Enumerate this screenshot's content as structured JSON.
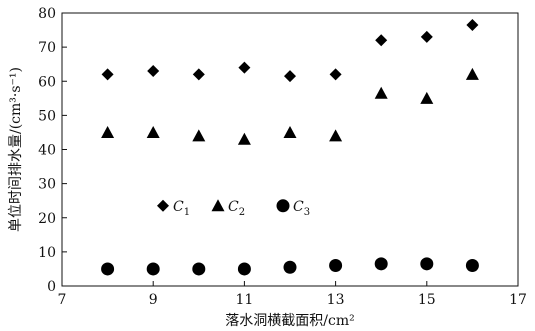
{
  "chart_data": {
    "type": "scatter",
    "xlabel": "落水洞横截面积/cm²",
    "ylabel": "单位时间排水量/(cm³·s⁻¹)",
    "xlim": [
      7,
      17
    ],
    "ylim": [
      0,
      80
    ],
    "xticks": [
      7,
      9,
      11,
      13,
      15,
      17
    ],
    "yticks": [
      0,
      10,
      20,
      30,
      40,
      50,
      60,
      70,
      80
    ],
    "grid": false,
    "legend_position": "middle-left",
    "series": [
      {
        "name": "C",
        "subscript": "1",
        "marker": "diamond",
        "x": [
          8,
          9,
          10,
          11,
          12,
          13,
          14,
          15,
          16
        ],
        "y": [
          62,
          63,
          62,
          64,
          61.5,
          62,
          72,
          73,
          76.5
        ]
      },
      {
        "name": "C",
        "subscript": "2",
        "marker": "triangle",
        "x": [
          8,
          9,
          10,
          11,
          12,
          13,
          14,
          15,
          16
        ],
        "y": [
          45,
          45,
          44,
          43,
          45,
          44,
          56.5,
          55,
          62
        ]
      },
      {
        "name": "C",
        "subscript": "3",
        "marker": "circle",
        "x": [
          8,
          9,
          10,
          11,
          12,
          13,
          14,
          15,
          16
        ],
        "y": [
          5,
          5,
          5,
          5,
          5.5,
          6,
          6.5,
          6.5,
          6
        ]
      }
    ]
  }
}
